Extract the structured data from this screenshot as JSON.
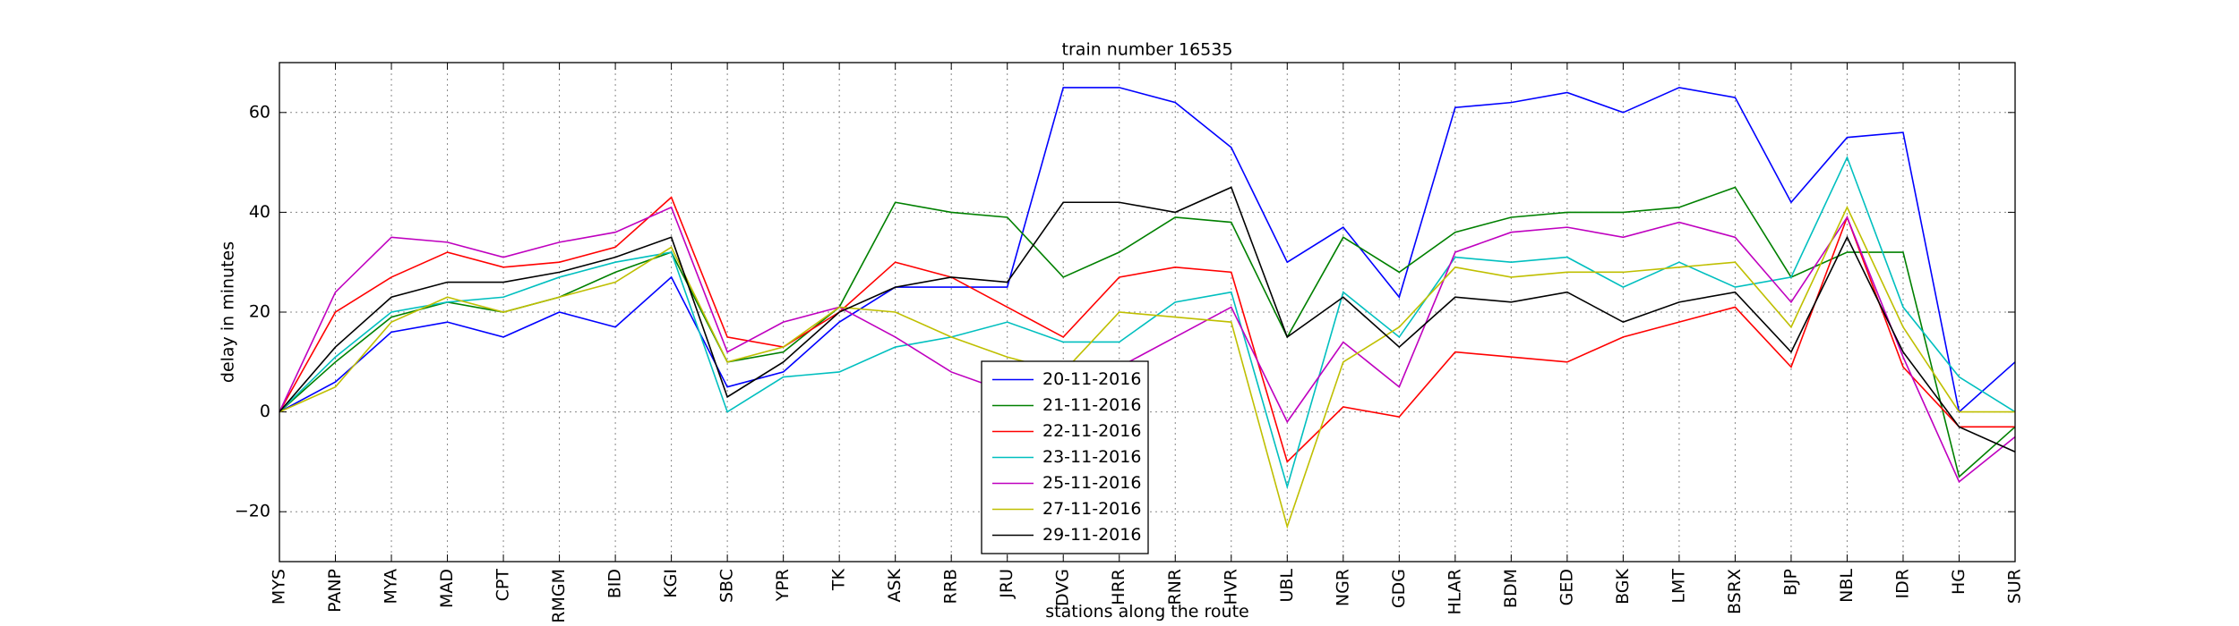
{
  "chart_data": {
    "type": "line",
    "title": "train number 16535",
    "x_label": "stations along the route",
    "y_label": "delay in minutes",
    "categories": [
      "MYS",
      "PANP",
      "MYA",
      "MAD",
      "CPT",
      "RMGM",
      "BID",
      "KGI",
      "SBC",
      "YPR",
      "TK",
      "ASK",
      "RRB",
      "JRU",
      "DVG",
      "HRR",
      "RNR",
      "HVR",
      "UBL",
      "NGR",
      "GDG",
      "HLAR",
      "BDM",
      "GED",
      "BGK",
      "LMT",
      "BSRX",
      "BJP",
      "NBL",
      "IDR",
      "HG",
      "SUR"
    ],
    "series": [
      {
        "name": "20-11-2016",
        "color": "#0000ff",
        "values": [
          0,
          6,
          16,
          18,
          15,
          20,
          17,
          27,
          5,
          8,
          18,
          25,
          25,
          25,
          65,
          65,
          62,
          53,
          30,
          37,
          23,
          61,
          62,
          64,
          60,
          65,
          63,
          42,
          55,
          56,
          0,
          10
        ]
      },
      {
        "name": "21-11-2016",
        "color": "#008000",
        "values": [
          0,
          10,
          19,
          22,
          20,
          23,
          28,
          32,
          10,
          12,
          21,
          42,
          40,
          39,
          27,
          32,
          39,
          38,
          15,
          35,
          28,
          36,
          39,
          40,
          40,
          41,
          45,
          27,
          32,
          32,
          -13,
          -3
        ]
      },
      {
        "name": "22-11-2016",
        "color": "#ff0000",
        "values": [
          0,
          20,
          27,
          32,
          29,
          30,
          33,
          43,
          15,
          13,
          20,
          30,
          27,
          21,
          15,
          27,
          29,
          28,
          -10,
          1,
          -1,
          12,
          11,
          10,
          15,
          18,
          21,
          9,
          39,
          9,
          -3,
          -3
        ]
      },
      {
        "name": "23-11-2016",
        "color": "#00bfbf",
        "values": [
          0,
          11,
          20,
          22,
          23,
          27,
          30,
          32,
          0,
          7,
          8,
          13,
          15,
          18,
          14,
          14,
          22,
          24,
          -15,
          24,
          15,
          31,
          30,
          31,
          25,
          30,
          25,
          27,
          51,
          21,
          7,
          0
        ]
      },
      {
        "name": "25-11-2016",
        "color": "#bf00bf",
        "values": [
          0,
          24,
          35,
          34,
          31,
          34,
          36,
          41,
          12,
          18,
          21,
          15,
          8,
          4,
          10,
          9,
          15,
          21,
          -2,
          14,
          5,
          32,
          36,
          37,
          35,
          38,
          35,
          22,
          39,
          11,
          -14,
          -5
        ]
      },
      {
        "name": "27-11-2016",
        "color": "#bfbf00",
        "values": [
          0,
          5,
          18,
          23,
          20,
          23,
          26,
          33,
          10,
          13,
          21,
          20,
          15,
          11,
          8,
          20,
          19,
          18,
          -23,
          10,
          17,
          29,
          27,
          28,
          28,
          29,
          30,
          17,
          41,
          17,
          0,
          0
        ]
      },
      {
        "name": "29-11-2016",
        "color": "#000000",
        "values": [
          0,
          13,
          23,
          26,
          26,
          28,
          31,
          35,
          3,
          10,
          20,
          25,
          27,
          26,
          42,
          42,
          40,
          45,
          15,
          23,
          13,
          23,
          22,
          24,
          18,
          22,
          24,
          12,
          35,
          12,
          -3,
          -8
        ]
      }
    ],
    "ylim": [
      -30,
      70
    ],
    "yticks": [
      {
        "value": -20,
        "label": "−20"
      },
      0,
      20,
      40,
      60
    ],
    "grid": true,
    "legend": "lower center"
  }
}
